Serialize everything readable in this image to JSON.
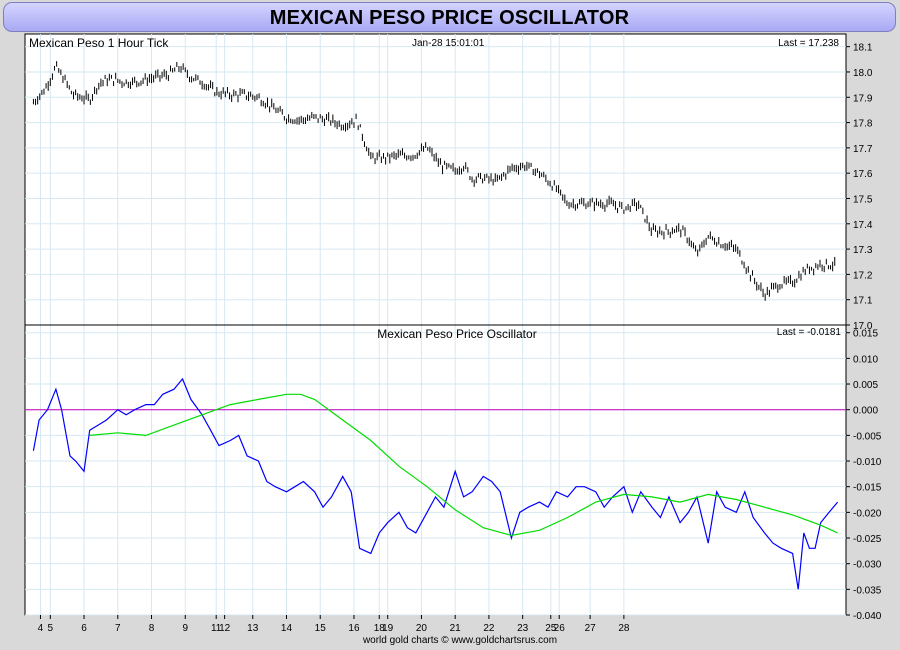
{
  "title": "MEXICAN PESO PRICE OSCILLATOR",
  "footer": "world gold charts © www.goldchartsrus.com",
  "chart_data": [
    {
      "type": "line",
      "name": "price-panel",
      "label": "Mexican Peso 1 Hour Tick",
      "timestamp": "Jan-28  15:01:01",
      "last": "Last = 17.238",
      "ylim": [
        17.0,
        18.15
      ],
      "yticks": [
        "18.1",
        "18.0",
        "17.9",
        "17.8",
        "17.7",
        "17.6",
        "17.5",
        "17.4",
        "17.3",
        "17.2",
        "17.1",
        "17.0"
      ],
      "series": [
        {
          "style": "hourly-bars",
          "color": "#000000",
          "x": [
            0,
            0.4,
            0.8,
            1.1,
            1.4,
            1.7,
            2.0,
            2.3,
            2.6,
            2.9,
            3.2,
            3.6,
            4.0,
            4.4,
            4.8,
            5.2,
            5.6,
            6.0,
            6.5,
            7.0,
            7.5,
            8.0,
            8.5,
            9.0,
            9.5,
            10.0,
            10.5,
            11.0,
            11.5,
            12.0,
            12.5,
            13.0,
            13.5,
            14.0,
            14.5,
            15.0,
            15.3,
            15.6,
            16.0,
            16.5,
            17.0,
            17.5,
            18.0,
            18.5,
            19.0,
            19.5,
            20.0,
            20.5,
            21.0,
            21.5,
            22.0,
            22.5,
            23.0,
            23.3,
            23.6,
            24.0,
            24.5,
            25.0,
            25.5,
            26.0,
            26.5,
            27.0,
            27.5,
            28.0,
            28.5
          ],
          "values": [
            17.88,
            17.93,
            18.02,
            17.97,
            17.91,
            17.9,
            17.89,
            17.95,
            17.97,
            17.97,
            17.96,
            17.96,
            17.97,
            17.98,
            17.99,
            18.02,
            17.98,
            17.96,
            17.92,
            17.91,
            17.91,
            17.9,
            17.86,
            17.82,
            17.81,
            17.82,
            17.81,
            17.79,
            17.81,
            17.66,
            17.66,
            17.67,
            17.67,
            17.7,
            17.63,
            17.61,
            17.63,
            17.58,
            17.58,
            17.57,
            17.62,
            17.63,
            17.6,
            17.55,
            17.48,
            17.48,
            17.48,
            17.48,
            17.46,
            17.48,
            17.37,
            17.37,
            17.38,
            17.34,
            17.28,
            17.35,
            17.32,
            17.3,
            17.2,
            17.12,
            17.16,
            17.17,
            17.22,
            17.24,
            17.238
          ]
        }
      ]
    },
    {
      "type": "line",
      "name": "oscillator-panel",
      "label": "Mexican Peso Price Oscillator",
      "last": "Last = -0.0181",
      "ylim": [
        -0.04,
        0.0165
      ],
      "yticks": [
        "0.015",
        "0.010",
        "0.005",
        "0.000",
        "-0.005",
        "-0.010",
        "-0.015",
        "-0.020",
        "-0.025",
        "-0.030",
        "-0.035",
        "-0.040"
      ],
      "zero_line_color": "#c000c0",
      "series": [
        {
          "style": "oscillator",
          "color": "#0000ff",
          "x": [
            0,
            0.2,
            0.5,
            0.8,
            1.0,
            1.3,
            1.5,
            1.8,
            2.0,
            2.3,
            2.6,
            3.0,
            3.3,
            3.6,
            4.0,
            4.3,
            4.6,
            5.0,
            5.3,
            5.6,
            6.0,
            6.3,
            6.6,
            7.0,
            7.3,
            7.6,
            8.0,
            8.3,
            8.6,
            9.0,
            9.3,
            9.6,
            10.0,
            10.3,
            10.6,
            11.0,
            11.3,
            11.6,
            12.0,
            12.3,
            12.6,
            13.0,
            13.3,
            13.6,
            14.0,
            14.3,
            14.6,
            15.0,
            15.3,
            15.6,
            16.0,
            16.3,
            16.6,
            17.0,
            17.3,
            17.6,
            18.0,
            18.3,
            18.6,
            19.0,
            19.3,
            19.6,
            20.0,
            20.3,
            20.6,
            21.0,
            21.3,
            21.6,
            22.0,
            22.3,
            22.6,
            23.0,
            23.3,
            23.6,
            24.0,
            24.3,
            24.6,
            25.0,
            25.3,
            25.6,
            26.0,
            26.3,
            26.6,
            27.0,
            27.2,
            27.4,
            27.6,
            27.8,
            28.0,
            28.3,
            28.6
          ],
          "values": [
            -0.008,
            -0.002,
            0.0,
            0.004,
            0.0,
            -0.009,
            -0.01,
            -0.012,
            -0.004,
            -0.003,
            -0.002,
            0.0,
            -0.001,
            0.0,
            0.001,
            0.001,
            0.003,
            0.004,
            0.006,
            0.002,
            -0.001,
            -0.004,
            -0.007,
            -0.006,
            -0.005,
            -0.009,
            -0.01,
            -0.014,
            -0.015,
            -0.016,
            -0.015,
            -0.014,
            -0.016,
            -0.019,
            -0.017,
            -0.013,
            -0.016,
            -0.027,
            -0.028,
            -0.024,
            -0.022,
            -0.02,
            -0.023,
            -0.024,
            -0.02,
            -0.017,
            -0.019,
            -0.012,
            -0.017,
            -0.016,
            -0.013,
            -0.014,
            -0.016,
            -0.025,
            -0.02,
            -0.019,
            -0.018,
            -0.019,
            -0.016,
            -0.017,
            -0.015,
            -0.015,
            -0.016,
            -0.019,
            -0.017,
            -0.015,
            -0.02,
            -0.016,
            -0.019,
            -0.021,
            -0.017,
            -0.022,
            -0.02,
            -0.017,
            -0.026,
            -0.016,
            -0.019,
            -0.02,
            -0.016,
            -0.021,
            -0.024,
            -0.026,
            -0.027,
            -0.028,
            -0.035,
            -0.024,
            -0.027,
            -0.027,
            -0.022,
            -0.02,
            -0.018
          ]
        },
        {
          "style": "signal",
          "color": "#00dd00",
          "x": [
            2,
            3,
            4,
            5,
            6,
            7,
            8,
            9,
            9.5,
            10,
            11,
            12,
            13,
            14,
            15,
            16,
            17,
            18,
            19,
            20,
            21,
            22,
            23,
            24,
            25,
            26,
            27,
            28,
            28.6
          ],
          "values": [
            -0.005,
            -0.0045,
            -0.005,
            -0.003,
            -0.001,
            0.001,
            0.002,
            0.003,
            0.003,
            0.002,
            -0.002,
            -0.006,
            -0.011,
            -0.015,
            -0.0195,
            -0.023,
            -0.0245,
            -0.0235,
            -0.021,
            -0.018,
            -0.0165,
            -0.017,
            -0.018,
            -0.0165,
            -0.0175,
            -0.019,
            -0.0205,
            -0.0225,
            -0.024
          ]
        }
      ]
    }
  ],
  "x_axis": {
    "xlim": [
      -0.3,
      28.9
    ],
    "ticks": [
      {
        "x": 0.25,
        "label": "4"
      },
      {
        "x": 0.6,
        "label": "5"
      },
      {
        "x": 1.8,
        "label": "6"
      },
      {
        "x": 3.0,
        "label": "7"
      },
      {
        "x": 4.2,
        "label": "8"
      },
      {
        "x": 5.4,
        "label": "9"
      },
      {
        "x": 6.5,
        "label": "11"
      },
      {
        "x": 6.8,
        "label": "12"
      },
      {
        "x": 7.8,
        "label": "13"
      },
      {
        "x": 9.0,
        "label": "14"
      },
      {
        "x": 10.2,
        "label": "15"
      },
      {
        "x": 11.4,
        "label": "16"
      },
      {
        "x": 12.3,
        "label": "18"
      },
      {
        "x": 12.6,
        "label": "19"
      },
      {
        "x": 13.8,
        "label": "20"
      },
      {
        "x": 15.0,
        "label": "21"
      },
      {
        "x": 16.2,
        "label": "22"
      },
      {
        "x": 17.4,
        "label": "23"
      },
      {
        "x": 18.4,
        "label": "25"
      },
      {
        "x": 18.7,
        "label": "26"
      },
      {
        "x": 19.8,
        "label": "27"
      },
      {
        "x": 21.0,
        "label": "28"
      }
    ]
  }
}
